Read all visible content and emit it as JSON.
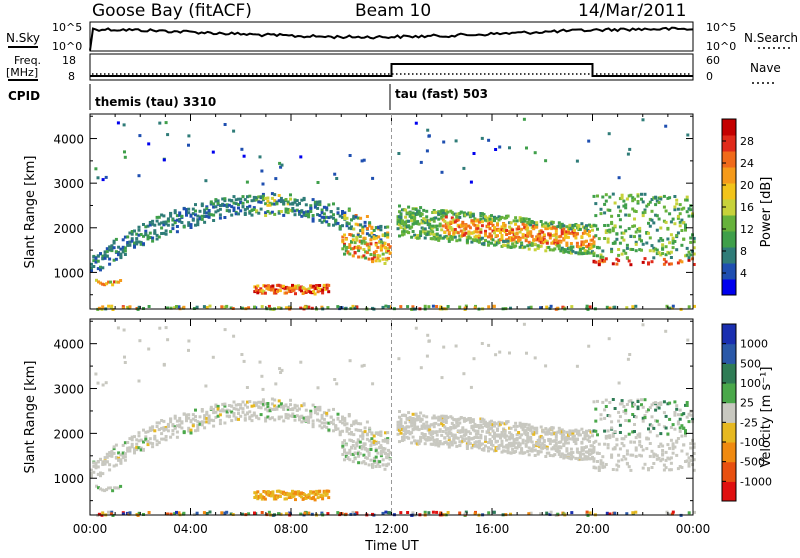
{
  "header": {
    "station": "Goose Bay (fitACF)",
    "beam": "Beam 10",
    "date": "14/Mar/2011"
  },
  "strips": {
    "nsky_label": "N.Sky",
    "nsearch_label": "N.Search",
    "freq_label_line1": "Freq.",
    "freq_label_line2": "[MHz]",
    "nave_label": "Nave",
    "cpid_label": "CPID",
    "nsky_ticks": [
      "10^5",
      "10^0"
    ],
    "nsearch_ticks": [
      "10^5",
      "10^0"
    ],
    "freq_ticks": [
      "18",
      "8"
    ],
    "nave_ticks": [
      "60",
      "0"
    ],
    "cpid_segments": [
      {
        "label": "themis (tau) 3310",
        "start": 0,
        "end": 12
      },
      {
        "label": "tau (fast) 503",
        "start": 12,
        "end": 24
      }
    ],
    "nave_step": {
      "low_value": 0,
      "high_value": 60,
      "high_start": 12,
      "high_end": 20
    }
  },
  "chart_data": [
    {
      "type": "heatmap",
      "title": "",
      "xlabel": "Time UT",
      "ylabel": "Slant Range [km]",
      "x_ticks": [
        "00:00",
        "04:00",
        "08:00",
        "12:00",
        "16:00",
        "20:00",
        "00:00"
      ],
      "y_ticks": [
        "1000",
        "2000",
        "3000",
        "4000"
      ],
      "xlim": [
        0,
        24
      ],
      "ylim": [
        180,
        4550
      ],
      "colorbar_label": "Power [dB]",
      "colorbar_ticks": [
        "4",
        "8",
        "12",
        "16",
        "20",
        "24",
        "28"
      ],
      "colorbar_colors": [
        "#0000ee",
        "#1f4fb0",
        "#2f7c78",
        "#3f9f4a",
        "#66b23b",
        "#c7d23a",
        "#f2c41a",
        "#f59a1a",
        "#f06a1a",
        "#e02a1a",
        "#c40000"
      ]
    },
    {
      "type": "heatmap",
      "title": "",
      "xlabel": "Time UT",
      "ylabel": "Slant Range [km]",
      "x_ticks": [
        "00:00",
        "04:00",
        "08:00",
        "12:00",
        "16:00",
        "20:00",
        "00:00"
      ],
      "y_ticks": [
        "1000",
        "2000",
        "3000",
        "4000"
      ],
      "xlim": [
        0,
        24
      ],
      "ylim": [
        180,
        4550
      ],
      "colorbar_label": "Velocity [m s⁻¹]",
      "colorbar_ticks": [
        "1000",
        "500",
        "100",
        "25",
        "-25",
        "-100",
        "-500",
        "-1000"
      ],
      "colorbar_colors": [
        "#1a2fb0",
        "#2a58a8",
        "#2f7c55",
        "#4aa84a",
        "#c8c8c0",
        "#e6b820",
        "#f08a10",
        "#e85010",
        "#e01010"
      ]
    }
  ]
}
